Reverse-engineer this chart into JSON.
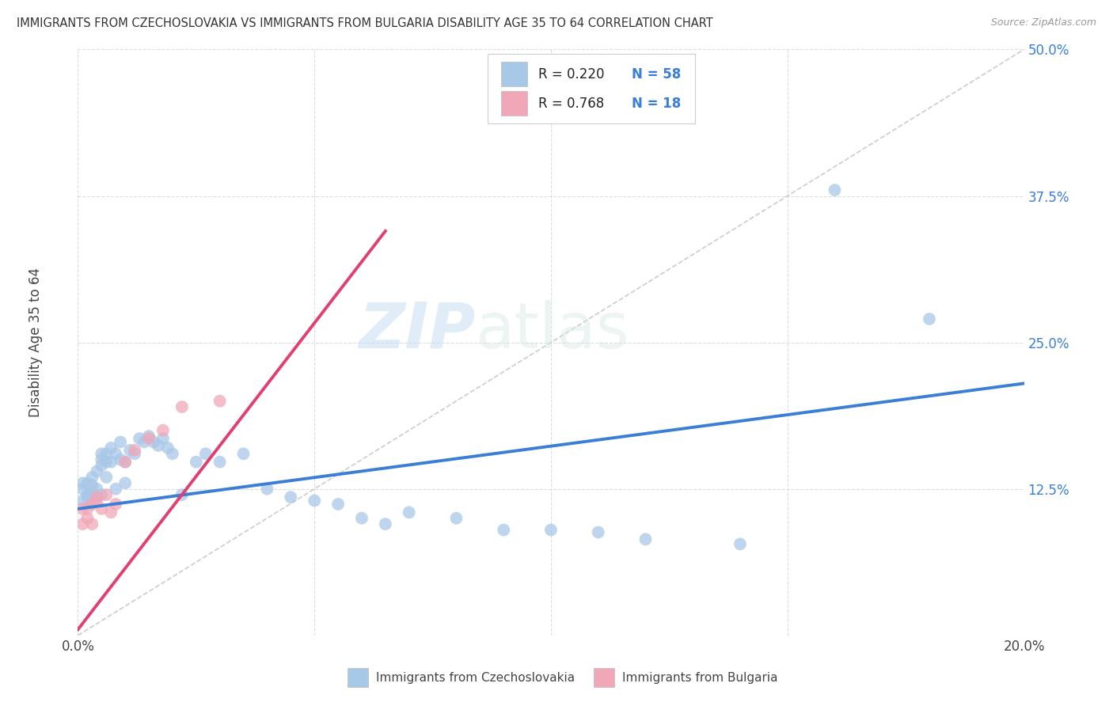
{
  "title": "IMMIGRANTS FROM CZECHOSLOVAKIA VS IMMIGRANTS FROM BULGARIA DISABILITY AGE 35 TO 64 CORRELATION CHART",
  "source": "Source: ZipAtlas.com",
  "ylabel": "Disability Age 35 to 64",
  "xlim": [
    0.0,
    0.2
  ],
  "ylim": [
    0.0,
    0.5
  ],
  "xticks": [
    0.0,
    0.05,
    0.1,
    0.15,
    0.2
  ],
  "yticks": [
    0.0,
    0.125,
    0.25,
    0.375,
    0.5
  ],
  "xticklabels": [
    "0.0%",
    "",
    "",
    "",
    "20.0%"
  ],
  "yticklabels_right": [
    "",
    "12.5%",
    "25.0%",
    "37.5%",
    "50.0%"
  ],
  "color_blue": "#a8c8e8",
  "color_pink": "#f0a8b8",
  "line_blue": "#3a7fd5",
  "line_pink": "#e04070",
  "line_diag_color": "#cccccc",
  "watermark": "ZIPatlas",
  "czecho_x": [
    0.001,
    0.001,
    0.001,
    0.002,
    0.002,
    0.002,
    0.003,
    0.003,
    0.003,
    0.003,
    0.004,
    0.004,
    0.004,
    0.005,
    0.005,
    0.005,
    0.005,
    0.006,
    0.006,
    0.006,
    0.007,
    0.007,
    0.008,
    0.008,
    0.009,
    0.009,
    0.01,
    0.01,
    0.011,
    0.012,
    0.013,
    0.014,
    0.015,
    0.016,
    0.017,
    0.018,
    0.019,
    0.02,
    0.022,
    0.025,
    0.027,
    0.03,
    0.035,
    0.04,
    0.045,
    0.05,
    0.055,
    0.06,
    0.065,
    0.07,
    0.08,
    0.09,
    0.1,
    0.11,
    0.12,
    0.14,
    0.16,
    0.18
  ],
  "czecho_y": [
    0.13,
    0.125,
    0.115,
    0.118,
    0.13,
    0.12,
    0.122,
    0.128,
    0.135,
    0.115,
    0.14,
    0.125,
    0.118,
    0.155,
    0.15,
    0.145,
    0.12,
    0.155,
    0.148,
    0.135,
    0.16,
    0.148,
    0.155,
    0.125,
    0.165,
    0.15,
    0.148,
    0.13,
    0.158,
    0.155,
    0.168,
    0.165,
    0.17,
    0.165,
    0.162,
    0.168,
    0.16,
    0.155,
    0.12,
    0.148,
    0.155,
    0.148,
    0.155,
    0.125,
    0.118,
    0.115,
    0.112,
    0.1,
    0.095,
    0.105,
    0.1,
    0.09,
    0.09,
    0.088,
    0.082,
    0.078,
    0.38,
    0.27
  ],
  "bulgaria_x": [
    0.001,
    0.001,
    0.002,
    0.002,
    0.003,
    0.003,
    0.004,
    0.004,
    0.005,
    0.006,
    0.007,
    0.008,
    0.01,
    0.012,
    0.015,
    0.018,
    0.022,
    0.03
  ],
  "bulgaria_y": [
    0.108,
    0.095,
    0.1,
    0.108,
    0.112,
    0.095,
    0.115,
    0.118,
    0.108,
    0.12,
    0.105,
    0.112,
    0.148,
    0.158,
    0.168,
    0.175,
    0.195,
    0.2
  ],
  "blue_line_x": [
    0.0,
    0.2
  ],
  "blue_line_y": [
    0.108,
    0.215
  ],
  "pink_line_x": [
    0.0,
    0.065
  ],
  "pink_line_y": [
    0.005,
    0.345
  ]
}
